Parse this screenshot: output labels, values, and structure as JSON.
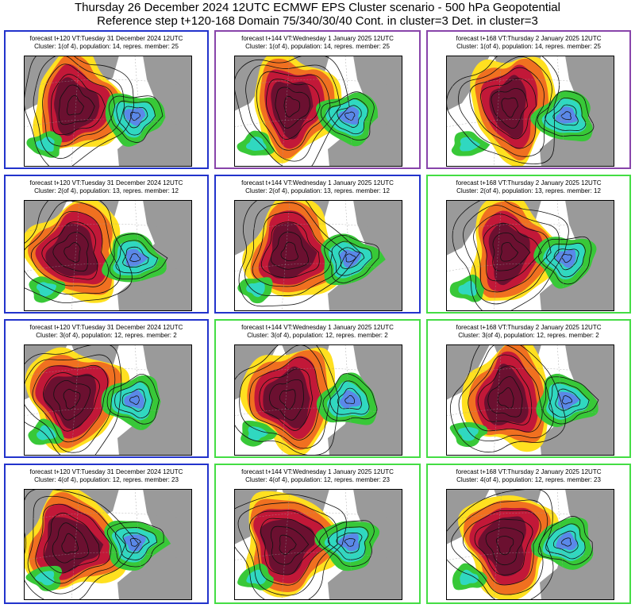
{
  "title": {
    "line1": "Thursday 26 December 2024 12UTC ECMWF EPS Cluster scenario - 500 hPa Geopotential",
    "line2": "Reference step t+120-168 Domain 75/340/30/40 Cont. in cluster=3 Det. in cluster=3"
  },
  "colors": {
    "blue_frame": "#2233cc",
    "purple_frame": "#8844aa",
    "green_frame": "#44dd44",
    "land": "#9a9a9a",
    "sea": "#ffffff",
    "pos3": "#6b1030",
    "pos2": "#c21838",
    "pos1": "#f07020",
    "pos0": "#ffe020",
    "neg0": "#38c838",
    "neg1": "#30d8c0",
    "neg2": "#5a88e8"
  },
  "panels": [
    {
      "line1": "forecast t+120 VT:Tuesday 31 December 2024 12UTC",
      "line2": "Cluster: 1(of 4), population: 14, repres. member: 25",
      "frame": "blue"
    },
    {
      "line1": "forecast t+144 VT:Wednesday 1 January 2025 12UTC",
      "line2": "Cluster: 1(of 4), population: 14, repres. member: 25",
      "frame": "purple"
    },
    {
      "line1": "forecast t+168 VT:Thursday 2 January 2025 12UTC",
      "line2": "Cluster: 1(of 4), population: 14, repres. member: 25",
      "frame": "purple"
    },
    {
      "line1": "forecast t+120 VT:Tuesday 31 December 2024 12UTC",
      "line2": "Cluster: 2(of 4), population: 13, repres. member: 12",
      "frame": "blue"
    },
    {
      "line1": "forecast t+144 VT:Wednesday 1 January 2025 12UTC",
      "line2": "Cluster: 2(of 4), population: 13, repres. member: 12",
      "frame": "blue"
    },
    {
      "line1": "forecast t+168 VT:Thursday 2 January 2025 12UTC",
      "line2": "Cluster: 2(of 4), population: 13, repres. member: 12",
      "frame": "green"
    },
    {
      "line1": "forecast t+120 VT:Tuesday 31 December 2024 12UTC",
      "line2": "Cluster: 3(of 4), population: 12, repres. member: 2",
      "frame": "blue"
    },
    {
      "line1": "forecast t+144 VT:Wednesday 1 January 2025 12UTC",
      "line2": "Cluster: 3(of 4), population: 12, repres. member: 2",
      "frame": "green"
    },
    {
      "line1": "forecast t+168 VT:Thursday 2 January 2025 12UTC",
      "line2": "Cluster: 3(of 4), population: 12, repres. member: 2",
      "frame": "green"
    },
    {
      "line1": "forecast t+120 VT:Tuesday 31 December 2024 12UTC",
      "line2": "Cluster: 4(of 4), population: 12, repres. member: 23",
      "frame": "blue"
    },
    {
      "line1": "forecast t+144 VT:Wednesday 1 January 2025 12UTC",
      "line2": "Cluster: 4(of 4), population: 12, repres. member: 23",
      "frame": "green"
    },
    {
      "line1": "forecast t+168 VT:Thursday 2 January 2025 12UTC",
      "line2": "Cluster: 4(of 4), population: 12, repres. member: 23",
      "frame": "green"
    }
  ]
}
